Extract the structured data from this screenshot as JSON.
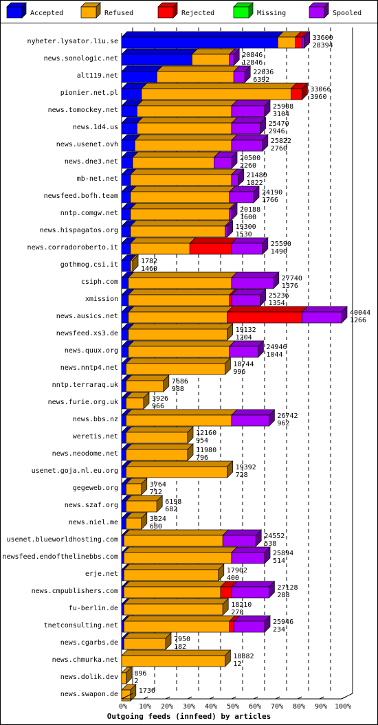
{
  "legend": [
    {
      "name": "Accepted",
      "color": "#0000ff",
      "key": "accepted"
    },
    {
      "name": "Refused",
      "color": "#ffaa00",
      "key": "refused"
    },
    {
      "name": "Rejected",
      "color": "#ff0000",
      "key": "rejected"
    },
    {
      "name": "Missing",
      "color": "#00ff00",
      "key": "missing"
    },
    {
      "name": "Spooled",
      "color": "#aa00ff",
      "key": "spooled"
    }
  ],
  "chart_data": {
    "type": "bar",
    "orientation": "horizontal",
    "stacked": true,
    "xlabel": "Outgoing feeds (innfeed) by articles",
    "xlim": [
      0,
      100
    ],
    "x_ticks": [
      "0%",
      "10%",
      "20%",
      "30%",
      "40%",
      "50%",
      "60%",
      "70%",
      "80%",
      "90%",
      "100%"
    ],
    "grid": true,
    "legend_position": "top",
    "rows": [
      {
        "host": "nyheter.lysator.liu.se",
        "total": "33600",
        "accepted": "28394",
        "pct": {
          "accepted": 71,
          "refused": 8,
          "rejected": 3,
          "missing": 0,
          "spooled": 1
        }
      },
      {
        "host": "news.sonologic.net",
        "total": "20846",
        "accepted": "12846",
        "pct": {
          "accepted": 32,
          "refused": 17,
          "rejected": 0,
          "missing": 0,
          "spooled": 2
        }
      },
      {
        "host": "alt119.net",
        "total": "22036",
        "accepted": "6392",
        "pct": {
          "accepted": 16,
          "refused": 35,
          "rejected": 0,
          "missing": 0,
          "spooled": 5
        }
      },
      {
        "host": "pionier.net.pl",
        "total": "33066",
        "accepted": "3960",
        "pct": {
          "accepted": 9,
          "refused": 68,
          "rejected": 5,
          "missing": 0,
          "spooled": 0
        }
      },
      {
        "host": "news.tomockey.net",
        "total": "25908",
        "accepted": "3104",
        "pct": {
          "accepted": 7,
          "refused": 43,
          "rejected": 0,
          "missing": 0,
          "spooled": 15
        }
      },
      {
        "host": "news.1d4.us",
        "total": "25470",
        "accepted": "2946",
        "pct": {
          "accepted": 7,
          "refused": 43,
          "rejected": 0,
          "missing": 0,
          "spooled": 13
        }
      },
      {
        "host": "news.usenet.ovh",
        "total": "25822",
        "accepted": "2760",
        "pct": {
          "accepted": 6,
          "refused": 44,
          "rejected": 0,
          "missing": 0,
          "spooled": 14
        }
      },
      {
        "host": "news.dne3.net",
        "total": "20500",
        "accepted": "2260",
        "pct": {
          "accepted": 5,
          "refused": 37,
          "rejected": 0,
          "missing": 0,
          "spooled": 8
        }
      },
      {
        "host": "mb-net.net",
        "total": "21480",
        "accepted": "1822",
        "pct": {
          "accepted": 4,
          "refused": 46,
          "rejected": 0,
          "missing": 0,
          "spooled": 3
        }
      },
      {
        "host": "newsfeed.bofh.team",
        "total": "24190",
        "accepted": "1766",
        "pct": {
          "accepted": 4,
          "refused": 45,
          "rejected": 0,
          "missing": 0,
          "spooled": 11
        }
      },
      {
        "host": "nntp.comgw.net",
        "total": "20188",
        "accepted": "1600",
        "pct": {
          "accepted": 4,
          "refused": 45,
          "rejected": 0,
          "missing": 0,
          "spooled": 1
        }
      },
      {
        "host": "news.hispagatos.org",
        "total": "19300",
        "accepted": "1530",
        "pct": {
          "accepted": 4,
          "refused": 43,
          "rejected": 0,
          "missing": 0,
          "spooled": 1
        }
      },
      {
        "host": "news.corradoroberto.it",
        "total": "25590",
        "accepted": "1490",
        "pct": {
          "accepted": 4,
          "refused": 27,
          "rejected": 19,
          "missing": 0,
          "spooled": 14
        }
      },
      {
        "host": "gothmog.csi.it",
        "total": "1782",
        "accepted": "1460",
        "pct": {
          "accepted": 4,
          "refused": 1,
          "rejected": 0,
          "missing": 0,
          "spooled": 0
        }
      },
      {
        "host": "csiph.com",
        "total": "27740",
        "accepted": "1376",
        "pct": {
          "accepted": 3,
          "refused": 47,
          "rejected": 0,
          "missing": 0,
          "spooled": 19
        }
      },
      {
        "host": "xmission",
        "total": "25236",
        "accepted": "1354",
        "pct": {
          "accepted": 3,
          "refused": 46,
          "rejected": 1,
          "missing": 0,
          "spooled": 13
        }
      },
      {
        "host": "news.ausics.net",
        "total": "40044",
        "accepted": "1266",
        "pct": {
          "accepted": 3,
          "refused": 45,
          "rejected": 34,
          "missing": 0,
          "spooled": 18
        }
      },
      {
        "host": "newsfeed.xs3.de",
        "total": "19132",
        "accepted": "1204",
        "pct": {
          "accepted": 3,
          "refused": 45,
          "rejected": 0,
          "missing": 0,
          "spooled": 0
        }
      },
      {
        "host": "news.quux.org",
        "total": "24946",
        "accepted": "1044",
        "pct": {
          "accepted": 3,
          "refused": 46,
          "rejected": 0,
          "missing": 0,
          "spooled": 13
        }
      },
      {
        "host": "news.nntp4.net",
        "total": "18744",
        "accepted": "996",
        "pct": {
          "accepted": 2,
          "refused": 45,
          "rejected": 0,
          "missing": 0,
          "spooled": 0
        }
      },
      {
        "host": "nntp.terraraq.uk",
        "total": "7686",
        "accepted": "988",
        "pct": {
          "accepted": 2,
          "refused": 17,
          "rejected": 0,
          "missing": 0,
          "spooled": 0
        }
      },
      {
        "host": "news.furie.org.uk",
        "total": "3926",
        "accepted": "966",
        "pct": {
          "accepted": 2,
          "refused": 8,
          "rejected": 0,
          "missing": 0,
          "spooled": 0
        }
      },
      {
        "host": "news.bbs.nz",
        "total": "26742",
        "accepted": "962",
        "pct": {
          "accepted": 2,
          "refused": 48,
          "rejected": 0,
          "missing": 0,
          "spooled": 17
        }
      },
      {
        "host": "weretis.net",
        "total": "12160",
        "accepted": "954",
        "pct": {
          "accepted": 2,
          "refused": 28,
          "rejected": 0,
          "missing": 0,
          "spooled": 0
        }
      },
      {
        "host": "news.neodome.net",
        "total": "11980",
        "accepted": "796",
        "pct": {
          "accepted": 2,
          "refused": 28,
          "rejected": 0,
          "missing": 0,
          "spooled": 0
        }
      },
      {
        "host": "usenet.goja.nl.eu.org",
        "total": "19392",
        "accepted": "728",
        "pct": {
          "accepted": 2,
          "refused": 46,
          "rejected": 0,
          "missing": 0,
          "spooled": 0
        }
      },
      {
        "host": "gegeweb.org",
        "total": "3764",
        "accepted": "712",
        "pct": {
          "accepted": 2,
          "refused": 7,
          "rejected": 0,
          "missing": 0,
          "spooled": 0
        }
      },
      {
        "host": "news.szaf.org",
        "total": "6198",
        "accepted": "682",
        "pct": {
          "accepted": 2,
          "refused": 14,
          "rejected": 0,
          "missing": 0,
          "spooled": 0
        }
      },
      {
        "host": "news.niel.me",
        "total": "3824",
        "accepted": "680",
        "pct": {
          "accepted": 2,
          "refused": 7,
          "rejected": 0,
          "missing": 0,
          "spooled": 0
        }
      },
      {
        "host": "usenet.blueworldhosting.com",
        "total": "24552",
        "accepted": "538",
        "pct": {
          "accepted": 1,
          "refused": 45,
          "rejected": 0,
          "missing": 0,
          "spooled": 15
        }
      },
      {
        "host": "newsfeed.endofthelinebbs.com",
        "total": "25894",
        "accepted": "514",
        "pct": {
          "accepted": 1,
          "refused": 49,
          "rejected": 0,
          "missing": 0,
          "spooled": 15
        }
      },
      {
        "host": "erje.net",
        "total": "17902",
        "accepted": "400",
        "pct": {
          "accepted": 1,
          "refused": 43,
          "rejected": 0,
          "missing": 0,
          "spooled": 0
        }
      },
      {
        "host": "news.cmpublishers.com",
        "total": "27128",
        "accepted": "288",
        "pct": {
          "accepted": 1,
          "refused": 44,
          "rejected": 5,
          "missing": 0,
          "spooled": 17
        }
      },
      {
        "host": "fu-berlin.de",
        "total": "18210",
        "accepted": "270",
        "pct": {
          "accepted": 1,
          "refused": 45,
          "rejected": 0,
          "missing": 0,
          "spooled": 0
        }
      },
      {
        "host": "tnetconsulting.net",
        "total": "25946",
        "accepted": "234",
        "pct": {
          "accepted": 1,
          "refused": 48,
          "rejected": 2,
          "missing": 0,
          "spooled": 14
        }
      },
      {
        "host": "news.cgarbs.de",
        "total": "7950",
        "accepted": "182",
        "pct": {
          "accepted": 1,
          "refused": 19,
          "rejected": 0,
          "missing": 0,
          "spooled": 0
        }
      },
      {
        "host": "news.chmurka.net",
        "total": "18882",
        "accepted": "12",
        "pct": {
          "accepted": 0,
          "refused": 47,
          "rejected": 0,
          "missing": 0,
          "spooled": 0
        }
      },
      {
        "host": "news.dolik.dev",
        "total": "896",
        "accepted": "2",
        "pct": {
          "accepted": 0,
          "refused": 2,
          "rejected": 0,
          "missing": 0,
          "spooled": 0
        }
      },
      {
        "host": "news.swapon.de",
        "total": "1736",
        "accepted": "",
        "pct": {
          "accepted": 0,
          "refused": 4,
          "rejected": 0,
          "missing": 0,
          "spooled": 0
        }
      }
    ]
  }
}
